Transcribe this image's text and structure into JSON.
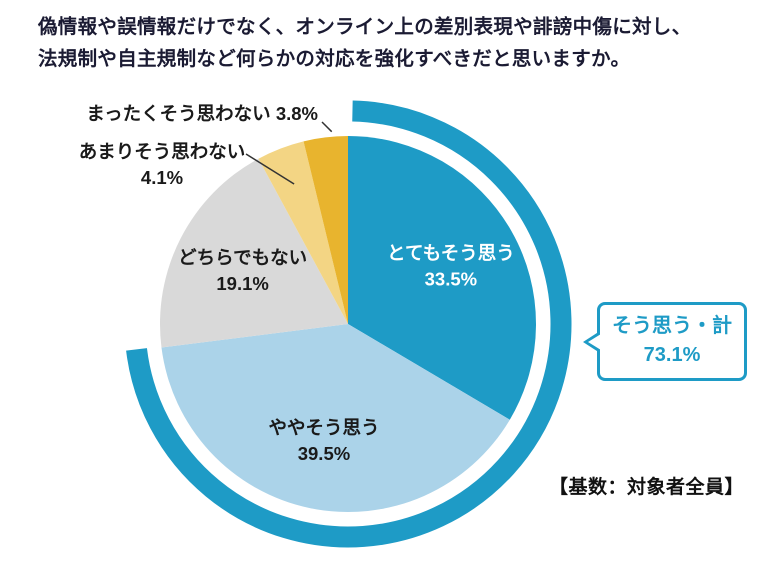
{
  "title": {
    "line1": "偽情報や誤情報だけでなく、オンライン上の差別表現や誹謗中傷に対し、",
    "line2": "法規制や自主規制など何らかの対応を強化すべきだと思いますか。"
  },
  "chart_data": {
    "type": "pie",
    "title": "偽情報や誤情報だけでなく、オンライン上の差別表現や誹謗中傷に対し、法規制や自主規制など何らかの対応を強化すべきだと思いますか。",
    "start_angle_deg": 0,
    "direction": "clockwise",
    "slices": [
      {
        "label": "とてもそう思う",
        "value": 33.5,
        "color": "#1e9bc6",
        "text_color": "#ffffff",
        "label_inside": true
      },
      {
        "label": "ややそう思う",
        "value": 39.5,
        "color": "#abd3e9",
        "text_color": "#1a1a1a",
        "label_inside": true
      },
      {
        "label": "どちらでもない",
        "value": 19.1,
        "color": "#d9d9d9",
        "text_color": "#1a1a1a",
        "label_inside": true
      },
      {
        "label": "あまりそう思わない",
        "value": 4.1,
        "color": "#f3d584",
        "text_color": "#1a1a1a",
        "label_inside": false
      },
      {
        "label": "まったくそう思わない",
        "value": 3.8,
        "color": "#e8b42e",
        "text_color": "#1a1a1a",
        "label_inside": false
      }
    ],
    "summary_ring": {
      "label": "そう思う・計",
      "value": 73.1,
      "color": "#1e9bc6"
    },
    "callout": {
      "label": "そう思う・計",
      "value": "73.1%"
    },
    "base_note": "【基数：対象者全員】",
    "legend_position": "none",
    "grid": false
  }
}
